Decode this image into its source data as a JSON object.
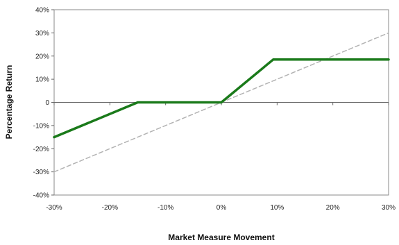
{
  "chart_data": {
    "type": "line",
    "xlabel": "Market Measure Movement",
    "ylabel": "Percentage Return",
    "xlim": [
      -30,
      30
    ],
    "ylim": [
      -40,
      40
    ],
    "x_ticks": [
      -30,
      -20,
      -10,
      0,
      10,
      20,
      30
    ],
    "y_ticks": [
      40,
      30,
      20,
      10,
      0,
      -10,
      -20,
      -30,
      -40
    ],
    "x_tick_labels": [
      "-30%",
      "-20%",
      "-10%",
      "0%",
      "10%",
      "20%",
      "30%"
    ],
    "y_tick_labels": [
      "40%",
      "30%",
      "20%",
      "10%",
      "0",
      "-10%",
      "-20%",
      "-30%",
      "-40%"
    ],
    "grid": false,
    "legend": "none",
    "series": [
      {
        "style": "solid",
        "color": "#1a7a1a",
        "x": [
          -30,
          -15,
          0,
          9.3,
          30
        ],
        "y": [
          -15,
          0,
          0,
          18.5,
          18.5
        ]
      },
      {
        "style": "dashed",
        "color": "#b3b3b3",
        "x": [
          -30,
          30
        ],
        "y": [
          -30,
          30
        ]
      }
    ]
  }
}
